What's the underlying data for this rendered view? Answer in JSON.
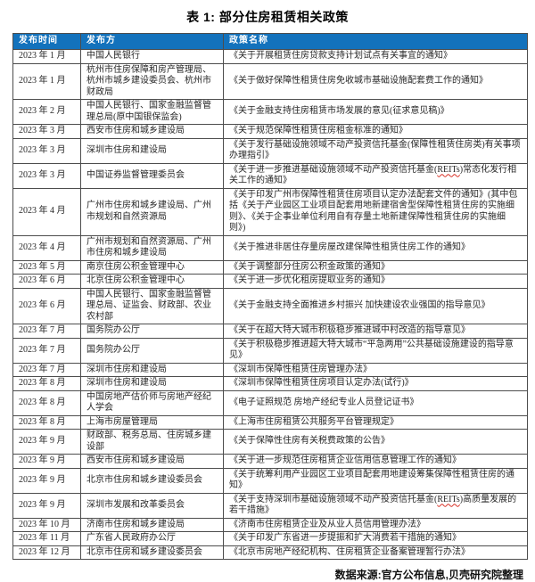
{
  "title": "表 1: 部分住房租赁相关政策",
  "highlight_term": "REITs",
  "colors": {
    "header_bg": "#1372BC",
    "header_text": "#FFFFFF",
    "border": "#4D4D4D",
    "spellcheck_underline": "#D93025"
  },
  "table": {
    "headers": [
      "发布时间",
      "发布方",
      "政策名称"
    ],
    "rows": [
      [
        "2023 年 1 月",
        "中国人民银行",
        "《关于开展租赁住房贷款支持计划试点有关事宜的通知》"
      ],
      [
        "2023 年 1 月",
        "杭州市住房保障和房产管理局、杭州市城乡建设委员会、杭州市财政局",
        "《关于做好保障性租赁住房免收城市基础设施配套费工作的通知》"
      ],
      [
        "2023 年 2 月",
        "中国人民银行、国家金融监督管理总局(原中国银保监会)",
        "《关于金融支持住房租赁市场发展的意见(征求意见稿)》"
      ],
      [
        "2023 年 3 月",
        "西安市住房和城乡建设局",
        "《关于规范保障性租赁住房租金标准的通知》"
      ],
      [
        "2023 年 3 月",
        "深圳市住房和建设局",
        "《关于发行基础设施领域不动产投资信托基金(保障性租赁住房类)有关事项办理指引》"
      ],
      [
        "2023 年 3 月",
        "中国证券监督管理委员会",
        "《关于进一步推进基础设施领域不动产投资信托基金(REITs)常态化发行相关工作的通知》"
      ],
      [
        "2023 年 4 月",
        "广州市住房和城乡建设局、广州市规划和自然资源局",
        "《关于印发广州市保障性租赁住房项目认定办法配套文件的通知》(其中包括《关于产业园区工业项目配套用地新建宿舍型保障性租赁住房的实施细则》、《关于企事业单位利用自有存量土地新建保障性租赁住房的实施细则》)"
      ],
      [
        "2023 年 4 月",
        "广州市规划和自然资源局、广州市住房和城乡建设局",
        "《关于推进非居住存量房屋改建保障性租赁住房工作的通知》"
      ],
      [
        "2023 年 5 月",
        "南京住房公积金管理中心",
        "《关于调整部分住房公积金政策的通知》"
      ],
      [
        "2023 年 6 月",
        "北京住房公积金管理中心",
        "《关于进一步优化租房提取业务的通知》"
      ],
      [
        "2023 年 6 月",
        "中国人民银行、国家金融监督管理总局、证监会、财政部、农业农村部",
        "《关于金融支持全面推进乡村振兴 加快建设农业强国的指导意见》"
      ],
      [
        "2023 年 7 月",
        "国务院办公厅",
        "《关于在超大特大城市积极稳步推进城中村改造的指导意见》"
      ],
      [
        "2023 年 7 月",
        "国务院办公厅",
        "《关于积极稳步推进超大特大城市“平急两用”公共基础设施建设的指导意见》"
      ],
      [
        "2023 年 7 月",
        "深圳市住房和建设局",
        "《深圳市保障性租赁住房管理办法》"
      ],
      [
        "2023 年 8 月",
        "深圳市住房和建设局",
        "《深圳市保障性租赁住房项目认定办法(试行)》"
      ],
      [
        "2023 年 8 月",
        "中国房地产估价师与房地产经纪人学会",
        "《电子证照规范 房地产经纪专业人员登记证书》"
      ],
      [
        "2023 年 8 月",
        "上海市房屋管理局",
        "《上海市住房租赁公共服务平台管理规定》"
      ],
      [
        "2023 年 9 月",
        "财政部、税务总局、住房城乡建设部",
        "《关于保障性住房有关税费政策的公告》"
      ],
      [
        "2023 年 9 月",
        "西安市住房和城乡建设局",
        "《关于进一步规范住房租赁企业信用信息管理工作的通知》"
      ],
      [
        "2023 年 9 月",
        "北京市住房和城乡建设委员会",
        "《关于统筹利用产业园区工业项目配套用地建设筹集保障性租赁住房的通知》"
      ],
      [
        "2023 年 9 月",
        "深圳市发展和改革委员会",
        "《关于支持深圳市基础设施领域不动产投资信托基金(REITs)高质量发展的若干措施》"
      ],
      [
        "2023 年 10 月",
        "济南市住房和城乡建设局",
        "《济南市住房租赁企业及从业人员信用管理办法》"
      ],
      [
        "2023 年 11 月",
        "广东省人民政府办公厅",
        "《关于印发广东省进一步提振和扩大消费若干措施的通知》"
      ],
      [
        "2023 年 12 月",
        "北京市住房和城乡建设委员会",
        "《北京市房地产经纪机构、住房租赁企业备案管理暂行办法》"
      ]
    ]
  },
  "footer": "数据来源:官方公布信息,贝壳研究院整理"
}
